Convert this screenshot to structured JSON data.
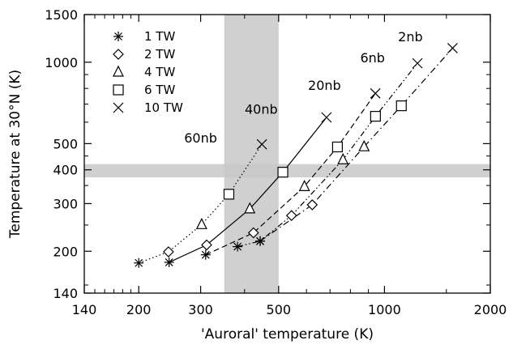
{
  "chart_data": {
    "type": "line",
    "title": "",
    "xlabel": "'Auroral' temperature (K)",
    "ylabel": "Temperature at 30°N (K)",
    "xscale": "log",
    "yscale": "log",
    "xlim": [
      140,
      2000
    ],
    "ylim": [
      140,
      1500
    ],
    "xticks": [
      140,
      200,
      300,
      500,
      1000,
      2000
    ],
    "yticks": [
      140,
      200,
      300,
      400,
      500,
      1000,
      1500
    ],
    "grid": false,
    "legend_position": "top-left",
    "legend": [
      {
        "label": "1 TW",
        "marker": "asterisk"
      },
      {
        "label": "2 TW",
        "marker": "diamond"
      },
      {
        "label": "4 TW",
        "marker": "triangle"
      },
      {
        "label": "6 TW",
        "marker": "square"
      },
      {
        "label": "10 TW",
        "marker": "x"
      }
    ],
    "shaded_bands": [
      {
        "axis": "x",
        "range": [
          350,
          500
        ],
        "color": "#c8c8c8"
      },
      {
        "axis": "y",
        "range": [
          375,
          420
        ],
        "color": "#c8c8c8"
      }
    ],
    "series": [
      {
        "name": "60nb",
        "dash": "dotted",
        "points": [
          {
            "x": 200,
            "y": 181,
            "marker": "asterisk"
          },
          {
            "x": 243,
            "y": 199,
            "marker": "diamond"
          },
          {
            "x": 302,
            "y": 251,
            "marker": "triangle"
          },
          {
            "x": 361,
            "y": 325,
            "marker": "square"
          },
          {
            "x": 448,
            "y": 497,
            "marker": "x"
          }
        ]
      },
      {
        "name": "40nb",
        "dash": "solid",
        "points": [
          {
            "x": 244,
            "y": 182,
            "marker": "asterisk"
          },
          {
            "x": 312,
            "y": 211,
            "marker": "diamond"
          },
          {
            "x": 414,
            "y": 287,
            "marker": "triangle"
          },
          {
            "x": 514,
            "y": 392,
            "marker": "square"
          },
          {
            "x": 684,
            "y": 625,
            "marker": "x"
          }
        ]
      },
      {
        "name": "20nb",
        "dash": "dashed",
        "points": [
          {
            "x": 310,
            "y": 194,
            "marker": "asterisk"
          },
          {
            "x": 424,
            "y": 234,
            "marker": "diamond"
          },
          {
            "x": 592,
            "y": 347,
            "marker": "triangle"
          },
          {
            "x": 735,
            "y": 486,
            "marker": "square"
          },
          {
            "x": 942,
            "y": 767,
            "marker": "x"
          }
        ]
      },
      {
        "name": "6nb",
        "dash": "dash-dot-dot",
        "points": [
          {
            "x": 382,
            "y": 208,
            "marker": "asterisk"
          },
          {
            "x": 443,
            "y": 218,
            "marker": "asterisk"
          },
          {
            "x": 544,
            "y": 271,
            "marker": "diamond"
          },
          {
            "x": 762,
            "y": 436,
            "marker": "triangle"
          },
          {
            "x": 943,
            "y": 631,
            "marker": "square"
          },
          {
            "x": 1241,
            "y": 991,
            "marker": "x"
          }
        ]
      },
      {
        "name": "2nb",
        "dash": "dash-dot",
        "points": [
          {
            "x": 443,
            "y": 218,
            "marker": "asterisk"
          },
          {
            "x": 623,
            "y": 297,
            "marker": "diamond"
          },
          {
            "x": 875,
            "y": 487,
            "marker": "triangle"
          },
          {
            "x": 1117,
            "y": 690,
            "marker": "square"
          },
          {
            "x": 1562,
            "y": 1127,
            "marker": "x"
          }
        ]
      }
    ],
    "curve_labels": [
      {
        "text": "60nb",
        "x": 300,
        "y": 505
      },
      {
        "text": "40nb",
        "x": 446,
        "y": 645
      },
      {
        "text": "20nb",
        "x": 675,
        "y": 790
      },
      {
        "text": "6nb",
        "x": 925,
        "y": 1000
      },
      {
        "text": "2nb",
        "x": 1185,
        "y": 1195
      }
    ]
  }
}
